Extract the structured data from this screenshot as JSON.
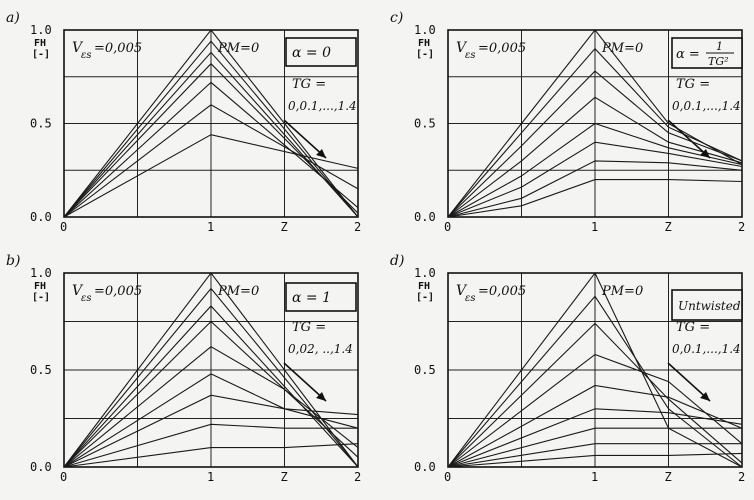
{
  "figure": {
    "charts": [
      {
        "panel_label": "a)",
        "fh_label": "FH",
        "fh_unit": "[-]",
        "v_label": "V",
        "v_sub": "εs",
        "v_value": "=0,005",
        "pm": "PM=0",
        "alpha_text": "α = 0",
        "alpha_fraction": null,
        "tg_label": "TG =",
        "tg_range": "0,0.1,...,1.4"
      },
      {
        "panel_label": "c)",
        "fh_label": "FH",
        "fh_unit": "[-]",
        "v_label": "V",
        "v_sub": "εs",
        "v_value": "=0,005",
        "pm": "PM=0",
        "alpha_text": "α =",
        "alpha_fraction": {
          "num": "1",
          "den": "TG²"
        },
        "tg_label": "TG =",
        "tg_range": "0,0.1,...,1.4"
      },
      {
        "panel_label": "b)",
        "fh_label": "FH",
        "fh_unit": "[-]",
        "v_label": "V",
        "v_sub": "εs",
        "v_value": "=0,005",
        "pm": "PM=0",
        "alpha_text": "α = 1",
        "alpha_fraction": null,
        "tg_label": "TG =",
        "tg_range": "0,02, ..,1.4"
      },
      {
        "panel_label": "d)",
        "fh_label": "FH",
        "fh_unit": "[-]",
        "v_label": "V",
        "v_sub": "εs",
        "v_value": "=0,005",
        "pm": "PM=0",
        "alpha_text": "Untwisted",
        "alpha_fraction": null,
        "tg_label": "TG =",
        "tg_range": "0,0.1,...,1.4"
      }
    ]
  },
  "chart_data": [
    {
      "type": "line",
      "panel": "a)",
      "xlabel": "Z",
      "ylabel": "FH [-]",
      "xlim": [
        0,
        2
      ],
      "ylim": [
        0,
        1.0
      ],
      "x_ticks": [
        "0",
        "1",
        "Z",
        "2"
      ],
      "y_ticks": [
        "0.0",
        "0.5",
        "1.0"
      ],
      "grid": true,
      "series": [
        {
          "x": [
            0,
            1,
            2
          ],
          "y": [
            0,
            1.0,
            0
          ]
        },
        {
          "x": [
            0,
            1,
            2
          ],
          "y": [
            0,
            0.94,
            0
          ]
        },
        {
          "x": [
            0,
            1,
            2
          ],
          "y": [
            0,
            0.88,
            0
          ]
        },
        {
          "x": [
            0,
            1,
            2
          ],
          "y": [
            0,
            0.82,
            0.02
          ]
        },
        {
          "x": [
            0,
            1,
            2
          ],
          "y": [
            0,
            0.72,
            0.05
          ]
        },
        {
          "x": [
            0,
            1,
            2
          ],
          "y": [
            0,
            0.6,
            0.15
          ]
        },
        {
          "x": [
            0,
            1,
            2
          ],
          "y": [
            0,
            0.44,
            0.26
          ]
        }
      ]
    },
    {
      "type": "line",
      "panel": "c)",
      "xlabel": "Z",
      "ylabel": "FH [-]",
      "xlim": [
        0,
        2
      ],
      "ylim": [
        0,
        1.0
      ],
      "x_ticks": [
        "0",
        "1",
        "Z",
        "2"
      ],
      "y_ticks": [
        "0.0",
        "0.5",
        "1.0"
      ],
      "grid": true,
      "series": [
        {
          "x": [
            0,
            0.5,
            1,
            1.5,
            2
          ],
          "y": [
            0,
            0.5,
            1.0,
            0.5,
            0.28
          ]
        },
        {
          "x": [
            0,
            0.5,
            1,
            1.5,
            2
          ],
          "y": [
            0,
            0.45,
            0.9,
            0.48,
            0.3
          ]
        },
        {
          "x": [
            0,
            0.5,
            1,
            1.5,
            2
          ],
          "y": [
            0,
            0.38,
            0.78,
            0.45,
            0.3
          ]
        },
        {
          "x": [
            0,
            0.5,
            1,
            1.5,
            2
          ],
          "y": [
            0,
            0.3,
            0.64,
            0.4,
            0.29
          ]
        },
        {
          "x": [
            0,
            0.5,
            1,
            1.5,
            2
          ],
          "y": [
            0,
            0.22,
            0.5,
            0.37,
            0.28
          ]
        },
        {
          "x": [
            0,
            0.5,
            1,
            1.5,
            2
          ],
          "y": [
            0,
            0.16,
            0.4,
            0.34,
            0.27
          ]
        },
        {
          "x": [
            0,
            0.5,
            1,
            1.5,
            2
          ],
          "y": [
            0,
            0.1,
            0.3,
            0.29,
            0.25
          ]
        },
        {
          "x": [
            0,
            0.5,
            1,
            1.5,
            2
          ],
          "y": [
            0,
            0.06,
            0.2,
            0.2,
            0.19
          ]
        }
      ]
    },
    {
      "type": "line",
      "panel": "b)",
      "xlabel": "Z",
      "ylabel": "FH [-]",
      "xlim": [
        0,
        2
      ],
      "ylim": [
        0,
        1.0
      ],
      "x_ticks": [
        "0",
        "1",
        "Z",
        "2"
      ],
      "y_ticks": [
        "0.0",
        "0.5",
        "1.0"
      ],
      "grid": true,
      "series": [
        {
          "x": [
            0,
            1,
            2
          ],
          "y": [
            0,
            1.0,
            0
          ]
        },
        {
          "x": [
            0,
            1,
            2
          ],
          "y": [
            0,
            0.92,
            0
          ]
        },
        {
          "x": [
            0,
            1,
            2
          ],
          "y": [
            0,
            0.83,
            0
          ]
        },
        {
          "x": [
            0,
            1,
            2
          ],
          "y": [
            0,
            0.75,
            0.05
          ]
        },
        {
          "x": [
            0,
            1,
            1.5,
            2
          ],
          "y": [
            0,
            0.62,
            0.4,
            0.1
          ]
        },
        {
          "x": [
            0,
            1,
            1.5,
            2
          ],
          "y": [
            0,
            0.48,
            0.3,
            0.2
          ]
        },
        {
          "x": [
            0,
            1,
            1.5,
            2
          ],
          "y": [
            0,
            0.37,
            0.3,
            0.27
          ]
        },
        {
          "x": [
            0,
            1,
            1.5,
            2
          ],
          "y": [
            0,
            0.22,
            0.2,
            0.2
          ]
        },
        {
          "x": [
            0,
            1,
            1.5,
            2
          ],
          "y": [
            0,
            0.1,
            0.1,
            0.12
          ]
        }
      ]
    },
    {
      "type": "line",
      "panel": "d)",
      "xlabel": "Z",
      "ylabel": "FH [-]",
      "xlim": [
        0,
        2
      ],
      "ylim": [
        0,
        1.0
      ],
      "x_ticks": [
        "0",
        "1",
        "Z",
        "2"
      ],
      "y_ticks": [
        "0.0",
        "0.5",
        "1.0"
      ],
      "grid": true,
      "series": [
        {
          "x": [
            0,
            1,
            1.5,
            2
          ],
          "y": [
            0,
            1.0,
            0.2,
            0
          ]
        },
        {
          "x": [
            0,
            1,
            1.5,
            2
          ],
          "y": [
            0,
            0.88,
            0.3,
            0
          ]
        },
        {
          "x": [
            0,
            1,
            1.5,
            2
          ],
          "y": [
            0,
            0.74,
            0.35,
            0.02
          ]
        },
        {
          "x": [
            0,
            1,
            1.5,
            2
          ],
          "y": [
            0,
            0.58,
            0.44,
            0.12
          ]
        },
        {
          "x": [
            0,
            1,
            1.5,
            2
          ],
          "y": [
            0,
            0.42,
            0.36,
            0.2
          ]
        },
        {
          "x": [
            0,
            1,
            1.5,
            2
          ],
          "y": [
            0,
            0.3,
            0.28,
            0.22
          ]
        },
        {
          "x": [
            0,
            1,
            1.5,
            2
          ],
          "y": [
            0,
            0.2,
            0.2,
            0.2
          ]
        },
        {
          "x": [
            0,
            1,
            1.5,
            2
          ],
          "y": [
            0,
            0.12,
            0.12,
            0.12
          ]
        },
        {
          "x": [
            0,
            1,
            1.5,
            2
          ],
          "y": [
            0,
            0.06,
            0.06,
            0.07
          ]
        }
      ]
    }
  ]
}
